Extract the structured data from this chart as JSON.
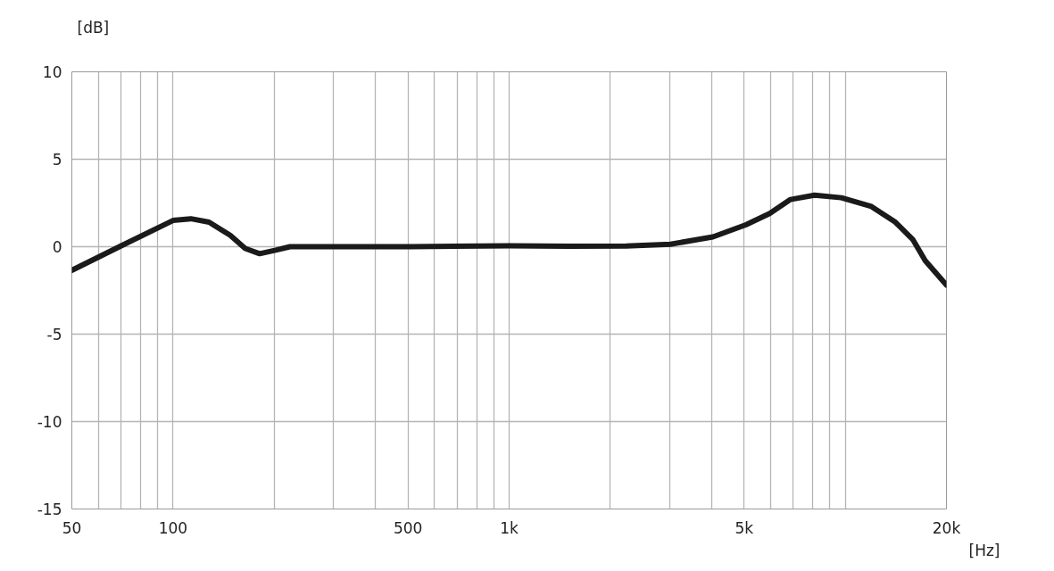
{
  "chart_data": {
    "type": "line",
    "xlabel": "[Hz]",
    "ylabel": "[dB]",
    "log": "x",
    "grid": true,
    "marker": "none",
    "line_style": "solid",
    "xlim": [
      50,
      20000
    ],
    "ylim": [
      -15,
      10
    ],
    "xticks": [
      50,
      {
        "value": 60,
        "label": null
      },
      {
        "value": 70,
        "label": null
      },
      {
        "value": 80,
        "label": null
      },
      {
        "value": 90,
        "label": null
      },
      100,
      {
        "value": 200,
        "label": null
      },
      {
        "value": 300,
        "label": null
      },
      {
        "value": 400,
        "label": null
      },
      500,
      {
        "value": 600,
        "label": null
      },
      {
        "value": 700,
        "label": null
      },
      {
        "value": 800,
        "label": null
      },
      {
        "value": 900,
        "label": null
      },
      {
        "value": 1000,
        "label": "1k"
      },
      {
        "value": 2000,
        "label": null
      },
      {
        "value": 3000,
        "label": null
      },
      {
        "value": 4000,
        "label": null
      },
      {
        "value": 5000,
        "label": "5k"
      },
      {
        "value": 6000,
        "label": null
      },
      {
        "value": 7000,
        "label": null
      },
      {
        "value": 8000,
        "label": null
      },
      {
        "value": 9000,
        "label": null
      },
      {
        "value": 10000,
        "label": null
      },
      {
        "value": 20000,
        "label": "20k"
      }
    ],
    "yticks": [
      -15,
      -10,
      -5,
      0,
      5,
      10
    ],
    "series": [
      {
        "color": "#1a1a1a",
        "x": [
          50,
          71,
          100,
          113,
          128,
          148,
          164,
          181,
          202,
          223,
          505,
          1000,
          1500,
          2230,
          3020,
          4040,
          5060,
          5960,
          6870,
          8100,
          9740,
          11960,
          14100,
          15900,
          17300,
          20000
        ],
        "values": [
          -1.35,
          0.1,
          1.5,
          1.6,
          1.4,
          0.65,
          -0.1,
          -0.4,
          -0.2,
          0,
          0,
          0.05,
          0.03,
          0.04,
          0.14,
          0.56,
          1.25,
          1.9,
          2.7,
          2.95,
          2.8,
          2.3,
          1.4,
          0.4,
          -0.8,
          -2.2
        ]
      }
    ]
  }
}
